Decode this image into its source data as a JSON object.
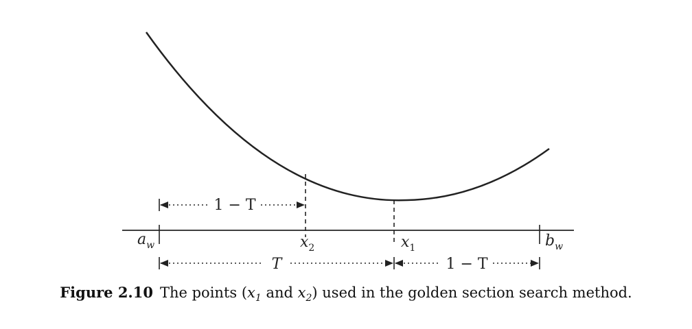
{
  "labels": {
    "a": "a",
    "a_sub": "w",
    "b": "b",
    "b_sub": "w",
    "x1": "x",
    "x1_sub": "1",
    "x2": "x",
    "x2_sub": "2",
    "upper_interval": "1 − T",
    "lower_left_interval": "T",
    "lower_right_interval": "1 − T"
  },
  "caption": {
    "label": "Figure 2.10",
    "part1": "The points (",
    "x": "x",
    "sub1": "1",
    "and": " and ",
    "sub2": "2",
    "part2": ") used in the golden section search method."
  },
  "colors": {
    "ink": "#222222"
  }
}
